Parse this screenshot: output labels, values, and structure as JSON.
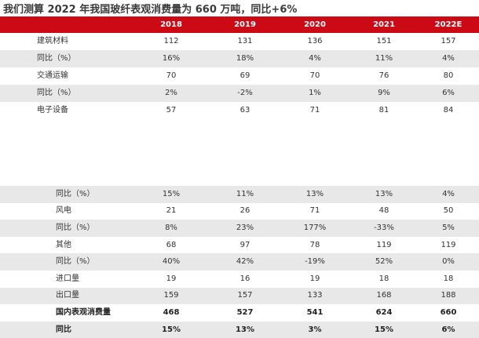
{
  "title": "我们测算 2022 年我国玻纤表观消费量为 660 万吨，同比+6%",
  "header": [
    "",
    "2018",
    "2019",
    "2020",
    "2021",
    "2022E"
  ],
  "top_rows": [
    [
      "建筑材料",
      "112",
      "131",
      "136",
      "151",
      "157"
    ],
    [
      "同比（%）",
      "16%",
      "18%",
      "4%",
      "11%",
      "4%"
    ],
    [
      "交通运输",
      "70",
      "69",
      "70",
      "76",
      "80"
    ],
    [
      "同比（%）",
      "2%",
      "-2%",
      "1%",
      "9%",
      "6%"
    ],
    [
      "电子设备",
      "57",
      "63",
      "71",
      "81",
      "84"
    ]
  ],
  "bottom_rows": [
    [
      "同比（%）",
      "15%",
      "11%",
      "13%",
      "13%",
      "4%"
    ],
    [
      "风电",
      "21",
      "26",
      "71",
      "48",
      "50"
    ],
    [
      "同比（%）",
      "8%",
      "23%",
      "177%",
      "-33%",
      "5%"
    ],
    [
      "其他",
      "68",
      "97",
      "78",
      "119",
      "119"
    ],
    [
      "同比（%）",
      "40%",
      "42%",
      "-19%",
      "52%",
      "0%"
    ],
    [
      "进口量",
      "19",
      "16",
      "19",
      "18",
      "18"
    ],
    [
      "出口量",
      "159",
      "157",
      "133",
      "168",
      "188"
    ],
    [
      "国内表观消费量",
      "468",
      "527",
      "541",
      "624",
      "660"
    ],
    [
      "同比",
      "15%",
      "13%",
      "3%",
      "15%",
      "6%"
    ]
  ],
  "colors": {
    "header_bg": "#cc0a16",
    "shade_bg": "#e8e8e8"
  }
}
